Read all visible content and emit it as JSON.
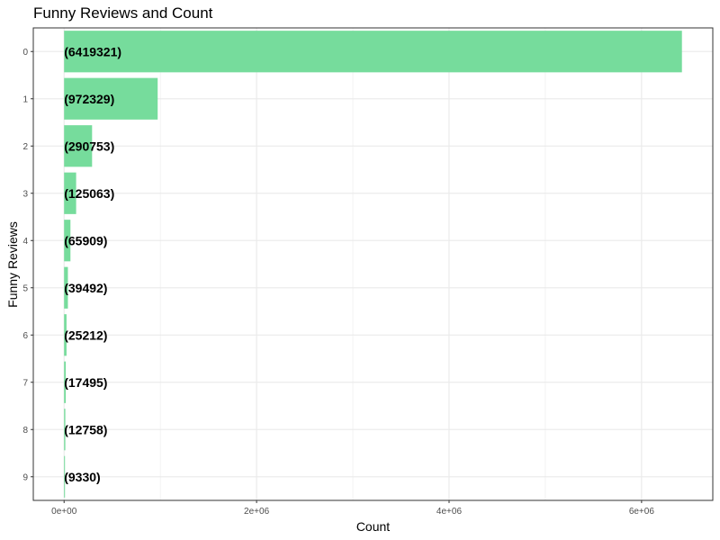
{
  "chart_data": {
    "type": "bar",
    "orientation": "horizontal",
    "title": "Funny Reviews and Count",
    "xlabel": "Count",
    "ylabel": "Funny Reviews",
    "categories": [
      "0",
      "1",
      "2",
      "3",
      "4",
      "5",
      "6",
      "7",
      "8",
      "9"
    ],
    "values": [
      6419321,
      972329,
      290753,
      125063,
      65909,
      39492,
      25212,
      17495,
      12758,
      9330
    ],
    "data_labels": [
      "(6419321)",
      "(972329)",
      "(290753)",
      "(125063)",
      "(65909)",
      "(39492)",
      "(25212)",
      "(17495)",
      "(12758)",
      "(9330)"
    ],
    "x_ticks": [
      0,
      2000000,
      4000000,
      6000000
    ],
    "x_tick_labels": [
      "0e+00",
      "2e+06",
      "4e+06",
      "6e+06"
    ],
    "xlim": [
      -320000,
      6740000
    ],
    "grid": true,
    "legend": "none",
    "bar_color": "#76dc9c",
    "grid_color": "#ebebeb",
    "panel_border_color": "#333333"
  }
}
